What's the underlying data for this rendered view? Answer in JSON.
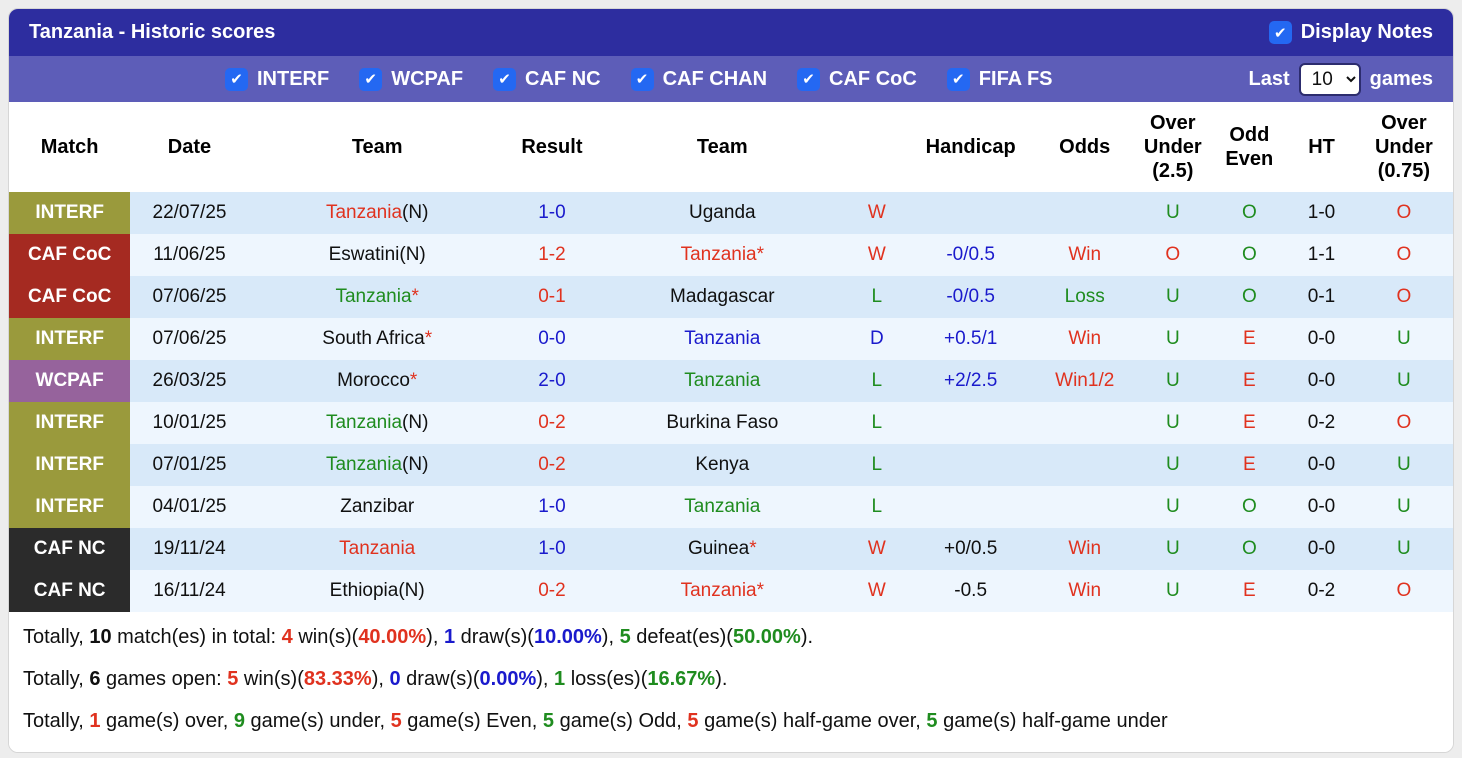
{
  "colors": {
    "red": "#e0321f",
    "green": "#1f8c1f",
    "blue": "#1a1acc",
    "black": "#101010",
    "badge_interf": "#9a9a3c",
    "badge_cafcoc": "#a52a21",
    "badge_wcpaf": "#96639c",
    "badge_cafnc": "#2b2b2b",
    "bar_dark": "#2d2d9f",
    "bar_light": "#5d5db8",
    "row_odd": "#d8e9f9",
    "row_even": "#eef6fe",
    "checkbox_blue": "#2468f2"
  },
  "header": {
    "title": "Tanzania - Historic scores",
    "display_notes": {
      "label": "Display Notes",
      "checked": true
    }
  },
  "filters": {
    "competitions": [
      {
        "label": "INTERF",
        "checked": true
      },
      {
        "label": "WCPAF",
        "checked": true
      },
      {
        "label": "CAF NC",
        "checked": true
      },
      {
        "label": "CAF CHAN",
        "checked": true
      },
      {
        "label": "CAF CoC",
        "checked": true
      },
      {
        "label": "FIFA FS",
        "checked": true
      }
    ],
    "last_label": "Last",
    "last_value": "10",
    "games_label": "games"
  },
  "table": {
    "columns": [
      "Match",
      "Date",
      "Team",
      "Result",
      "Team",
      "",
      "Handicap",
      "Odds",
      "Over Under (2.5)",
      "Odd Even",
      "HT",
      "Over Under (0.75)"
    ],
    "rows": [
      {
        "competition": "INTERF",
        "badge": "interf",
        "date": "22/07/25",
        "home": {
          "text": "Tanzania",
          "suffix": "(N)",
          "color": "red"
        },
        "result": {
          "text": "1-0",
          "color": "blue"
        },
        "away": {
          "text": "Uganda",
          "color": "black"
        },
        "outcome": {
          "text": "W",
          "color": "red"
        },
        "handicap": {
          "text": "",
          "color": "blue"
        },
        "odds": {
          "text": "",
          "color": "red"
        },
        "ou25": {
          "text": "U",
          "color": "green"
        },
        "oddeven": {
          "text": "O",
          "color": "green"
        },
        "ht": "1-0",
        "ou075": {
          "text": "O",
          "color": "red"
        }
      },
      {
        "competition": "CAF CoC",
        "badge": "cafcoc",
        "date": "11/06/25",
        "home": {
          "text": "Eswatini",
          "suffix": "(N)",
          "color": "black"
        },
        "result": {
          "text": "1-2",
          "color": "red"
        },
        "away": {
          "text": "Tanzania",
          "star": true,
          "color": "red"
        },
        "outcome": {
          "text": "W",
          "color": "red"
        },
        "handicap": {
          "text": "-0/0.5",
          "color": "blue"
        },
        "odds": {
          "text": "Win",
          "color": "red"
        },
        "ou25": {
          "text": "O",
          "color": "red"
        },
        "oddeven": {
          "text": "O",
          "color": "green"
        },
        "ht": "1-1",
        "ou075": {
          "text": "O",
          "color": "red"
        }
      },
      {
        "competition": "CAF CoC",
        "badge": "cafcoc",
        "date": "07/06/25",
        "home": {
          "text": "Tanzania",
          "star": true,
          "color": "green"
        },
        "result": {
          "text": "0-1",
          "color": "red"
        },
        "away": {
          "text": "Madagascar",
          "color": "black"
        },
        "outcome": {
          "text": "L",
          "color": "green"
        },
        "handicap": {
          "text": "-0/0.5",
          "color": "blue"
        },
        "odds": {
          "text": "Loss",
          "color": "green"
        },
        "ou25": {
          "text": "U",
          "color": "green"
        },
        "oddeven": {
          "text": "O",
          "color": "green"
        },
        "ht": "0-1",
        "ou075": {
          "text": "O",
          "color": "red"
        }
      },
      {
        "competition": "INTERF",
        "badge": "interf",
        "date": "07/06/25",
        "home": {
          "text": "South Africa",
          "star": true,
          "color": "black"
        },
        "result": {
          "text": "0-0",
          "color": "blue"
        },
        "away": {
          "text": "Tanzania",
          "color": "blue"
        },
        "outcome": {
          "text": "D",
          "color": "blue"
        },
        "handicap": {
          "text": "+0.5/1",
          "color": "blue"
        },
        "odds": {
          "text": "Win",
          "color": "red"
        },
        "ou25": {
          "text": "U",
          "color": "green"
        },
        "oddeven": {
          "text": "E",
          "color": "red"
        },
        "ht": "0-0",
        "ou075": {
          "text": "U",
          "color": "green"
        }
      },
      {
        "competition": "WCPAF",
        "badge": "wcpaf",
        "date": "26/03/25",
        "home": {
          "text": "Morocco",
          "star": true,
          "color": "black"
        },
        "result": {
          "text": "2-0",
          "color": "blue"
        },
        "away": {
          "text": "Tanzania",
          "color": "green"
        },
        "outcome": {
          "text": "L",
          "color": "green"
        },
        "handicap": {
          "text": "+2/2.5",
          "color": "blue"
        },
        "odds": {
          "text": "Win1/2",
          "color": "red"
        },
        "ou25": {
          "text": "U",
          "color": "green"
        },
        "oddeven": {
          "text": "E",
          "color": "red"
        },
        "ht": "0-0",
        "ou075": {
          "text": "U",
          "color": "green"
        }
      },
      {
        "competition": "INTERF",
        "badge": "interf",
        "date": "10/01/25",
        "home": {
          "text": "Tanzania",
          "suffix": "(N)",
          "color": "green"
        },
        "result": {
          "text": "0-2",
          "color": "red"
        },
        "away": {
          "text": "Burkina Faso",
          "color": "black"
        },
        "outcome": {
          "text": "L",
          "color": "green"
        },
        "handicap": {
          "text": "",
          "color": "blue"
        },
        "odds": {
          "text": "",
          "color": "red"
        },
        "ou25": {
          "text": "U",
          "color": "green"
        },
        "oddeven": {
          "text": "E",
          "color": "red"
        },
        "ht": "0-2",
        "ou075": {
          "text": "O",
          "color": "red"
        }
      },
      {
        "competition": "INTERF",
        "badge": "interf",
        "date": "07/01/25",
        "home": {
          "text": "Tanzania",
          "suffix": "(N)",
          "color": "green"
        },
        "result": {
          "text": "0-2",
          "color": "red"
        },
        "away": {
          "text": "Kenya",
          "color": "black"
        },
        "outcome": {
          "text": "L",
          "color": "green"
        },
        "handicap": {
          "text": "",
          "color": "blue"
        },
        "odds": {
          "text": "",
          "color": "red"
        },
        "ou25": {
          "text": "U",
          "color": "green"
        },
        "oddeven": {
          "text": "E",
          "color": "red"
        },
        "ht": "0-0",
        "ou075": {
          "text": "U",
          "color": "green"
        }
      },
      {
        "competition": "INTERF",
        "badge": "interf",
        "date": "04/01/25",
        "home": {
          "text": "Zanzibar",
          "color": "black"
        },
        "result": {
          "text": "1-0",
          "color": "blue"
        },
        "away": {
          "text": "Tanzania",
          "color": "green"
        },
        "outcome": {
          "text": "L",
          "color": "green"
        },
        "handicap": {
          "text": "",
          "color": "blue"
        },
        "odds": {
          "text": "",
          "color": "red"
        },
        "ou25": {
          "text": "U",
          "color": "green"
        },
        "oddeven": {
          "text": "O",
          "color": "green"
        },
        "ht": "0-0",
        "ou075": {
          "text": "U",
          "color": "green"
        }
      },
      {
        "competition": "CAF NC",
        "badge": "cafnc",
        "date": "19/11/24",
        "home": {
          "text": "Tanzania",
          "color": "red"
        },
        "result": {
          "text": "1-0",
          "color": "blue"
        },
        "away": {
          "text": "Guinea",
          "star": true,
          "color": "black"
        },
        "outcome": {
          "text": "W",
          "color": "red"
        },
        "handicap": {
          "text": "+0/0.5",
          "color": "black"
        },
        "odds": {
          "text": "Win",
          "color": "red"
        },
        "ou25": {
          "text": "U",
          "color": "green"
        },
        "oddeven": {
          "text": "O",
          "color": "green"
        },
        "ht": "0-0",
        "ou075": {
          "text": "U",
          "color": "green"
        }
      },
      {
        "competition": "CAF NC",
        "badge": "cafnc",
        "date": "16/11/24",
        "home": {
          "text": "Ethiopia",
          "suffix": "(N)",
          "color": "black"
        },
        "result": {
          "text": "0-2",
          "color": "red"
        },
        "away": {
          "text": "Tanzania",
          "star": true,
          "color": "red"
        },
        "outcome": {
          "text": "W",
          "color": "red"
        },
        "handicap": {
          "text": "-0.5",
          "color": "black"
        },
        "odds": {
          "text": "Win",
          "color": "red"
        },
        "ou25": {
          "text": "U",
          "color": "green"
        },
        "oddeven": {
          "text": "E",
          "color": "red"
        },
        "ht": "0-2",
        "ou075": {
          "text": "O",
          "color": "red"
        }
      }
    ]
  },
  "summary": {
    "lines": [
      {
        "segments": [
          {
            "t": "Totally, "
          },
          {
            "t": "10",
            "b": true
          },
          {
            "t": " match(es) in total: "
          },
          {
            "t": "4",
            "c": "red",
            "b": true
          },
          {
            "t": " win(s)("
          },
          {
            "t": "40.00%",
            "c": "red",
            "b": true
          },
          {
            "t": "), "
          },
          {
            "t": "1",
            "c": "blue",
            "b": true
          },
          {
            "t": " draw(s)("
          },
          {
            "t": "10.00%",
            "c": "blue",
            "b": true
          },
          {
            "t": "), "
          },
          {
            "t": "5",
            "c": "green",
            "b": true
          },
          {
            "t": " defeat(es)("
          },
          {
            "t": "50.00%",
            "c": "green",
            "b": true
          },
          {
            "t": ")."
          }
        ]
      },
      {
        "segments": [
          {
            "t": "Totally, "
          },
          {
            "t": "6",
            "b": true
          },
          {
            "t": " games open: "
          },
          {
            "t": "5",
            "c": "red",
            "b": true
          },
          {
            "t": " win(s)("
          },
          {
            "t": "83.33%",
            "c": "red",
            "b": true
          },
          {
            "t": "), "
          },
          {
            "t": "0",
            "c": "blue",
            "b": true
          },
          {
            "t": " draw(s)("
          },
          {
            "t": "0.00%",
            "c": "blue",
            "b": true
          },
          {
            "t": "), "
          },
          {
            "t": "1",
            "c": "green",
            "b": true
          },
          {
            "t": " loss(es)("
          },
          {
            "t": "16.67%",
            "c": "green",
            "b": true
          },
          {
            "t": ")."
          }
        ]
      },
      {
        "segments": [
          {
            "t": "Totally, "
          },
          {
            "t": "1",
            "c": "red",
            "b": true
          },
          {
            "t": " game(s) over, "
          },
          {
            "t": "9",
            "c": "green",
            "b": true
          },
          {
            "t": " game(s) under, "
          },
          {
            "t": "5",
            "c": "red",
            "b": true
          },
          {
            "t": " game(s) Even, "
          },
          {
            "t": "5",
            "c": "green",
            "b": true
          },
          {
            "t": " game(s) Odd, "
          },
          {
            "t": "5",
            "c": "red",
            "b": true
          },
          {
            "t": " game(s) half-game over, "
          },
          {
            "t": "5",
            "c": "green",
            "b": true
          },
          {
            "t": " game(s) half-game under"
          }
        ]
      }
    ]
  }
}
